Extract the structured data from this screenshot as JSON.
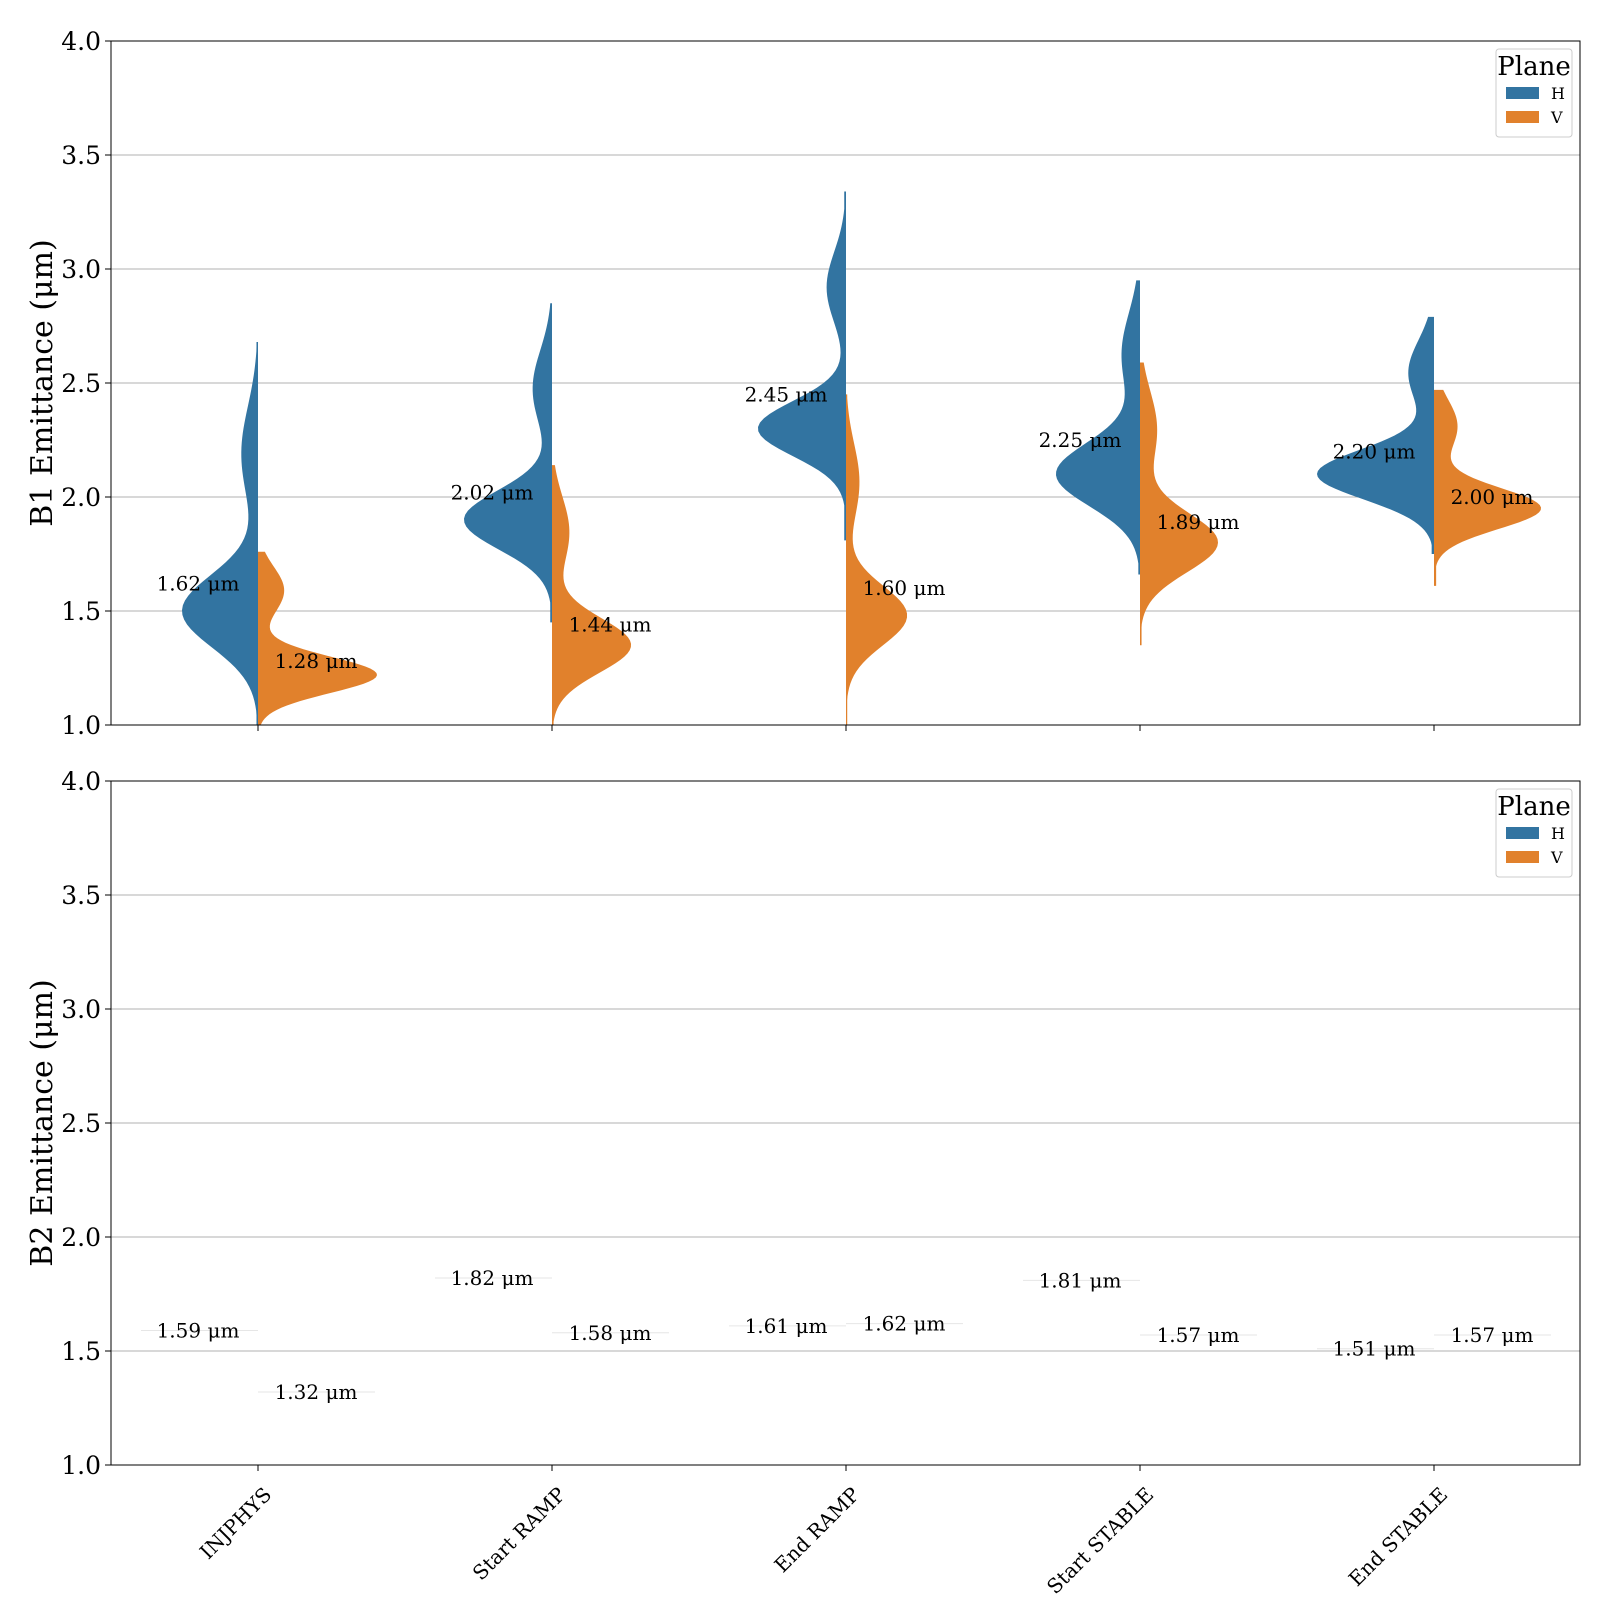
{
  "chart_data": [
    {
      "type": "violin",
      "split": true,
      "ylabel": "B1 Emittance (μm)",
      "ylim": [
        1.0,
        4.0
      ],
      "yticks": [
        "1.0",
        "1.5",
        "2.0",
        "2.5",
        "3.0",
        "3.5",
        "4.0"
      ],
      "grid": true,
      "legend": {
        "title": "Plane",
        "placement": "top-right",
        "entries": [
          "H",
          "V"
        ]
      },
      "categories": [
        "INJPHYS",
        "Start RAMP",
        "End RAMP",
        "Start STABLE",
        "End STABLE"
      ],
      "series": [
        {
          "name": "H",
          "color": "#3274a1",
          "medians": [
            1.62,
            2.02,
            2.45,
            2.25,
            2.2
          ],
          "median_labels": [
            "1.62 μm",
            "2.02 μm",
            "2.45 μm",
            "2.25 μm",
            "2.20 μm"
          ],
          "range": [
            [
              1.0,
              2.68
            ],
            [
              1.45,
              2.85
            ],
            [
              1.81,
              3.34
            ],
            [
              1.66,
              2.95
            ],
            [
              1.75,
              2.79
            ]
          ],
          "peaks": [
            [
              1.5
            ],
            [
              1.9
            ],
            [
              2.3
            ],
            [
              2.1
            ],
            [
              2.1
            ]
          ]
        },
        {
          "name": "V",
          "color": "#e1812c",
          "medians": [
            1.28,
            1.44,
            1.6,
            1.89,
            2.0
          ],
          "median_labels": [
            "1.28 μm",
            "1.44 μm",
            "1.60 μm",
            "1.89 μm",
            "2.00 μm"
          ],
          "range": [
            [
              1.0,
              1.76
            ],
            [
              1.0,
              2.14
            ],
            [
              1.0,
              2.45
            ],
            [
              1.35,
              2.59
            ],
            [
              1.61,
              2.47
            ]
          ],
          "peaks": [
            [
              1.22
            ],
            [
              1.35
            ],
            [
              1.48
            ],
            [
              1.8
            ],
            [
              1.95
            ]
          ]
        }
      ]
    },
    {
      "type": "violin",
      "split": true,
      "ylabel": "B2 Emittance (μm)",
      "ylim": [
        1.0,
        4.0
      ],
      "yticks": [
        "1.0",
        "1.5",
        "2.0",
        "2.5",
        "3.0",
        "3.5",
        "4.0"
      ],
      "grid": true,
      "legend": {
        "title": "Plane",
        "placement": "top-right",
        "entries": [
          "H",
          "V"
        ]
      },
      "categories": [
        "INJPHYS",
        "Start RAMP",
        "End RAMP",
        "Start STABLE",
        "End STABLE"
      ],
      "series": [
        {
          "name": "H",
          "color": "#3274a1",
          "medians": [
            1.59,
            1.82,
            1.61,
            1.81,
            1.51
          ],
          "median_labels": [
            "1.59 μm",
            "1.82 μm",
            "1.61 μm",
            "1.81 μm",
            "1.51 μm"
          ]
        },
        {
          "name": "V",
          "color": "#e1812c",
          "medians": [
            1.32,
            1.58,
            1.62,
            1.57,
            1.57
          ],
          "median_labels": [
            "1.32 μm",
            "1.58 μm",
            "1.62 μm",
            "1.57 μm",
            "1.57 μm"
          ]
        }
      ]
    }
  ]
}
